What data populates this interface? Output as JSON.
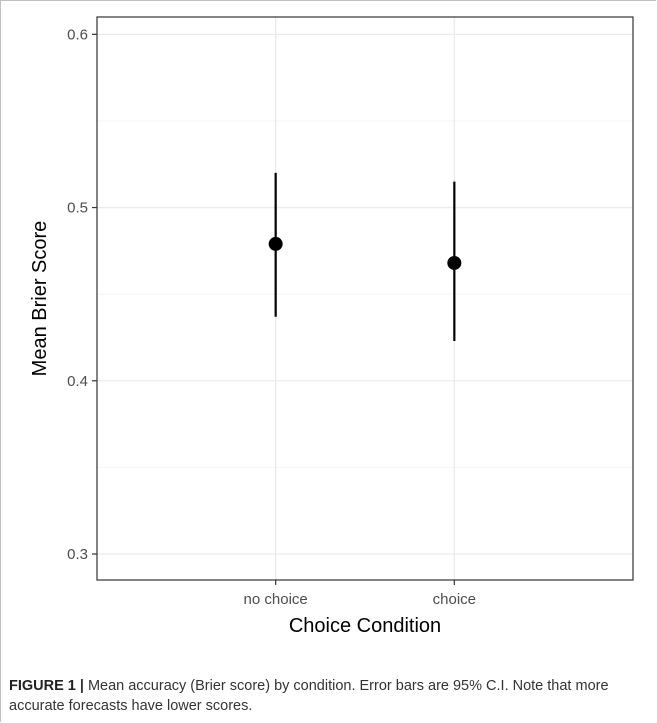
{
  "chart_data": {
    "type": "scatter",
    "categories": [
      "no choice",
      "choice"
    ],
    "points": [
      {
        "category": "no choice",
        "mean": 0.479,
        "ci_low": 0.437,
        "ci_high": 0.52
      },
      {
        "category": "choice",
        "mean": 0.468,
        "ci_low": 0.423,
        "ci_high": 0.515
      }
    ],
    "xlabel": "Choice Condition",
    "ylabel": "Mean Brier Score",
    "ylim": [
      0.285,
      0.61
    ],
    "yticks": [
      0.3,
      0.4,
      0.5,
      0.6
    ],
    "ytick_labels": [
      "0.3",
      "0.4",
      "0.5",
      "0.6"
    ],
    "grid": true,
    "colors": {
      "point": "#000000",
      "grid": "#ebebeb",
      "panel_border": "#333333",
      "tick_text": "#4d4d4d"
    }
  },
  "caption": {
    "label": "FIGURE 1",
    "separator": "|",
    "text": "Mean accuracy (Brier score) by condition. Error bars are 95% C.I. Note that more accurate forecasts have lower scores."
  }
}
